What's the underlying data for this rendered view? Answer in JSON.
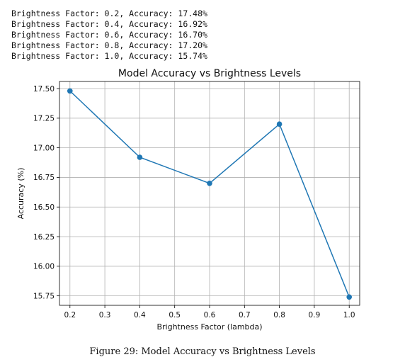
{
  "console": {
    "lines": [
      "Brightness Factor: 0.2, Accuracy: 17.48%",
      "Brightness Factor: 0.4, Accuracy: 16.92%",
      "Brightness Factor: 0.6, Accuracy: 16.70%",
      "Brightness Factor: 0.8, Accuracy: 17.20%",
      "Brightness Factor: 1.0, Accuracy: 15.74%"
    ]
  },
  "chart_data": {
    "type": "line",
    "title": "Model Accuracy vs Brightness Levels",
    "xlabel": "Brightness Factor (lambda)",
    "ylabel": "Accuracy (%)",
    "x": [
      0.2,
      0.4,
      0.6,
      0.8,
      1.0
    ],
    "series": [
      {
        "values": [
          17.48,
          16.92,
          16.7,
          17.2,
          15.74
        ],
        "color": "#1f77b4",
        "marker": "circle"
      }
    ],
    "xlim": [
      0.17,
      1.03
    ],
    "ylim": [
      15.67,
      17.56
    ],
    "xticks": [
      "0.2",
      "0.3",
      "0.4",
      "0.5",
      "0.6",
      "0.7",
      "0.8",
      "0.9",
      "1.0"
    ],
    "xtick_values": [
      0.2,
      0.3,
      0.4,
      0.5,
      0.6,
      0.7,
      0.8,
      0.9,
      1.0
    ],
    "yticks": [
      "15.75",
      "16.00",
      "16.25",
      "16.50",
      "16.75",
      "17.00",
      "17.25",
      "17.50"
    ],
    "ytick_values": [
      15.75,
      16.0,
      16.25,
      16.5,
      16.75,
      17.0,
      17.25,
      17.5
    ],
    "grid": true,
    "legend": "none"
  },
  "caption": "Figure 29: Model Accuracy vs Brightness Levels"
}
